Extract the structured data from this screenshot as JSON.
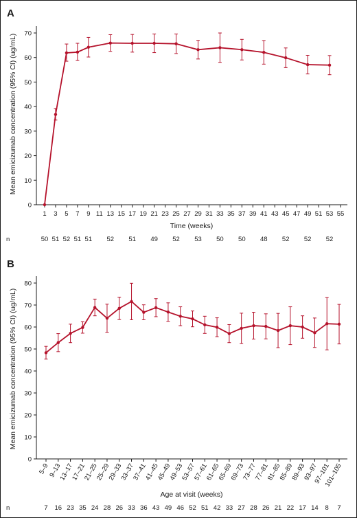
{
  "chart_data": [
    {
      "type": "line",
      "panel_label": "A",
      "xlabel": "Time (weeks)",
      "ylabel": "Mean emicizumab concentration (95% CI) (ug/mL)",
      "ylim": [
        0,
        70
      ],
      "yticks": [
        0,
        10,
        20,
        30,
        40,
        50,
        60,
        70
      ],
      "xlim": [
        0,
        56
      ],
      "xticks": [
        1,
        3,
        5,
        7,
        9,
        11,
        13,
        15,
        17,
        19,
        21,
        23,
        25,
        27,
        29,
        31,
        33,
        35,
        37,
        39,
        41,
        43,
        45,
        47,
        49,
        51,
        53,
        55
      ],
      "series_color": "#b5122b",
      "points": [
        {
          "x": 1,
          "y": 0,
          "lo": 0,
          "hi": 0
        },
        {
          "x": 3,
          "y": 36.8,
          "lo": 34.5,
          "hi": 39.2
        },
        {
          "x": 5,
          "y": 61.9,
          "lo": 58.5,
          "hi": 65.5
        },
        {
          "x": 7,
          "y": 62.2,
          "lo": 58.8,
          "hi": 65.8
        },
        {
          "x": 9,
          "y": 64.2,
          "lo": 60.2,
          "hi": 68.2
        },
        {
          "x": 13,
          "y": 65.9,
          "lo": 62.5,
          "hi": 69.3
        },
        {
          "x": 17,
          "y": 65.8,
          "lo": 62.2,
          "hi": 69.4
        },
        {
          "x": 21,
          "y": 65.8,
          "lo": 62.0,
          "hi": 69.6
        },
        {
          "x": 25,
          "y": 65.6,
          "lo": 61.6,
          "hi": 69.6
        },
        {
          "x": 29,
          "y": 63.2,
          "lo": 59.4,
          "hi": 67.0
        },
        {
          "x": 33,
          "y": 64.0,
          "lo": 58.0,
          "hi": 70.0
        },
        {
          "x": 37,
          "y": 63.2,
          "lo": 59.0,
          "hi": 67.4
        },
        {
          "x": 41,
          "y": 62.1,
          "lo": 57.3,
          "hi": 66.9
        },
        {
          "x": 45,
          "y": 59.9,
          "lo": 55.9,
          "hi": 63.9
        },
        {
          "x": 49,
          "y": 57.1,
          "lo": 53.3,
          "hi": 60.9
        },
        {
          "x": 53,
          "y": 56.9,
          "lo": 53.0,
          "hi": 60.8
        }
      ],
      "n_row": {
        "label": "n",
        "entries": [
          {
            "x": 1,
            "n": "50"
          },
          {
            "x": 3,
            "n": "51"
          },
          {
            "x": 5,
            "n": "52"
          },
          {
            "x": 7,
            "n": "51"
          },
          {
            "x": 9,
            "n": "51"
          },
          {
            "x": 13,
            "n": "52"
          },
          {
            "x": 17,
            "n": "51"
          },
          {
            "x": 21,
            "n": "49"
          },
          {
            "x": 25,
            "n": "52"
          },
          {
            "x": 29,
            "n": "53"
          },
          {
            "x": 33,
            "n": "50"
          },
          {
            "x": 37,
            "n": "50"
          },
          {
            "x": 41,
            "n": "48"
          },
          {
            "x": 45,
            "n": "52"
          },
          {
            "x": 49,
            "n": "52"
          },
          {
            "x": 53,
            "n": "52"
          }
        ]
      }
    },
    {
      "type": "line",
      "panel_label": "B",
      "xlabel": "Age at visit (weeks)",
      "ylabel": "Mean emicizumab concentration (95% CI) (ug/mL)",
      "ylim": [
        0,
        80
      ],
      "yticks": [
        0,
        10,
        20,
        30,
        40,
        50,
        60,
        70,
        80
      ],
      "series_color": "#b5122b",
      "categories": [
        "5–9",
        "9–13",
        "13–17",
        "17–21",
        "21–25",
        "25–29",
        "29–33",
        "33–37",
        "37–41",
        "41–45",
        "45–49",
        "49–53",
        "53–57",
        "57–61",
        "61–65",
        "65–69",
        "69–73",
        "73–77",
        "77–81",
        "81–85",
        "85–89",
        "89–93",
        "93–97",
        "97–101",
        "101–105"
      ],
      "values": [
        48.3,
        52.9,
        57.1,
        59.8,
        68.9,
        64.0,
        68.5,
        71.6,
        66.7,
        68.8,
        66.8,
        64.9,
        63.7,
        61.0,
        59.9,
        57.0,
        59.4,
        60.6,
        60.3,
        58.4,
        60.6,
        60.0,
        57.4,
        61.5,
        61.3
      ],
      "lo": [
        45.4,
        48.8,
        52.9,
        57.2,
        65.1,
        57.6,
        63.4,
        63.3,
        63.3,
        64.7,
        62.6,
        60.6,
        60.1,
        57.1,
        55.6,
        52.9,
        52.5,
        54.5,
        54.6,
        50.6,
        52.0,
        54.9,
        50.7,
        49.6,
        52.3
      ],
      "hi": [
        51.2,
        57.0,
        61.3,
        62.4,
        72.7,
        70.4,
        73.6,
        79.9,
        70.1,
        72.9,
        71.0,
        69.2,
        67.3,
        64.9,
        64.2,
        61.1,
        66.3,
        66.7,
        66.0,
        66.2,
        69.2,
        65.1,
        64.1,
        73.4,
        70.3
      ],
      "n_row": {
        "label": "n",
        "values": [
          "7",
          "16",
          "23",
          "35",
          "24",
          "28",
          "26",
          "33",
          "36",
          "43",
          "49",
          "46",
          "52",
          "51",
          "42",
          "33",
          "27",
          "28",
          "26",
          "21",
          "22",
          "17",
          "14",
          "8",
          "7"
        ]
      }
    }
  ]
}
